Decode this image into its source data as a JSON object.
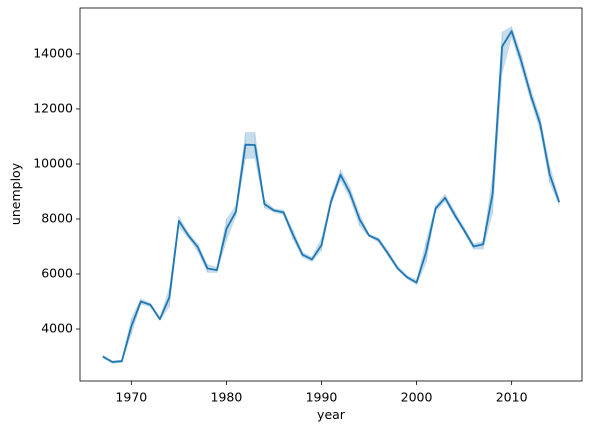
{
  "chart_data": {
    "type": "line",
    "x_label": "year",
    "y_label": "unemploy",
    "x": [
      1967,
      1968,
      1969,
      1970,
      1971,
      1972,
      1973,
      1974,
      1975,
      1976,
      1977,
      1978,
      1979,
      1980,
      1981,
      1982,
      1983,
      1984,
      1985,
      1986,
      1987,
      1988,
      1989,
      1990,
      1991,
      1992,
      1993,
      1994,
      1995,
      1996,
      1997,
      1998,
      1999,
      2000,
      2001,
      2002,
      2003,
      2004,
      2005,
      2006,
      2007,
      2008,
      2009,
      2010,
      2011,
      2012,
      2013,
      2014,
      2015
    ],
    "series": [
      {
        "color": "#1f77b4",
        "values": [
          3000,
          2800,
          2830,
          4100,
          5000,
          4880,
          4360,
          5150,
          7930,
          7400,
          6970,
          6200,
          6140,
          7640,
          8270,
          10700,
          10690,
          8540,
          8310,
          8240,
          7430,
          6700,
          6530,
          7050,
          8630,
          9610,
          8940,
          7990,
          7400,
          7240,
          6740,
          6210,
          5880,
          5690,
          6800,
          8380,
          8770,
          8150,
          7590,
          7000,
          7080,
          8920,
          14270,
          14830,
          13750,
          12510,
          11460,
          9620,
          8610
        ]
      }
    ],
    "band": {
      "color": "#1f77b4",
      "opacity": 0.25,
      "lower": [
        2950,
        2750,
        2780,
        3800,
        4900,
        4800,
        4300,
        4800,
        7700,
        7300,
        6800,
        6050,
        6050,
        7200,
        8100,
        10200,
        10200,
        8400,
        8250,
        8150,
        7250,
        6600,
        6450,
        6850,
        8500,
        9400,
        8750,
        7750,
        7350,
        7150,
        6650,
        6150,
        5830,
        5600,
        6400,
        8250,
        8650,
        8050,
        7500,
        6900,
        6900,
        8200,
        13300,
        14600,
        13500,
        12300,
        11200,
        9300,
        8500
      ],
      "upper": [
        3050,
        2850,
        2880,
        4400,
        5100,
        4950,
        4420,
        5500,
        8100,
        7500,
        7100,
        6350,
        6250,
        8000,
        8500,
        11150,
        11150,
        8700,
        8380,
        8330,
        7600,
        6800,
        6620,
        7300,
        8800,
        9800,
        9150,
        8200,
        7450,
        7320,
        6850,
        6300,
        5950,
        5800,
        7200,
        8500,
        8900,
        8300,
        7700,
        7100,
        7200,
        9600,
        14800,
        15000,
        14000,
        12750,
        11700,
        9950,
        8750
      ]
    },
    "xlim": [
      1964.6,
      2017.4
    ],
    "ylim": [
      2110,
      15670
    ],
    "xticks": [
      1970,
      1980,
      1990,
      2000,
      2010
    ],
    "yticks": [
      4000,
      6000,
      8000,
      10000,
      12000,
      14000
    ]
  }
}
